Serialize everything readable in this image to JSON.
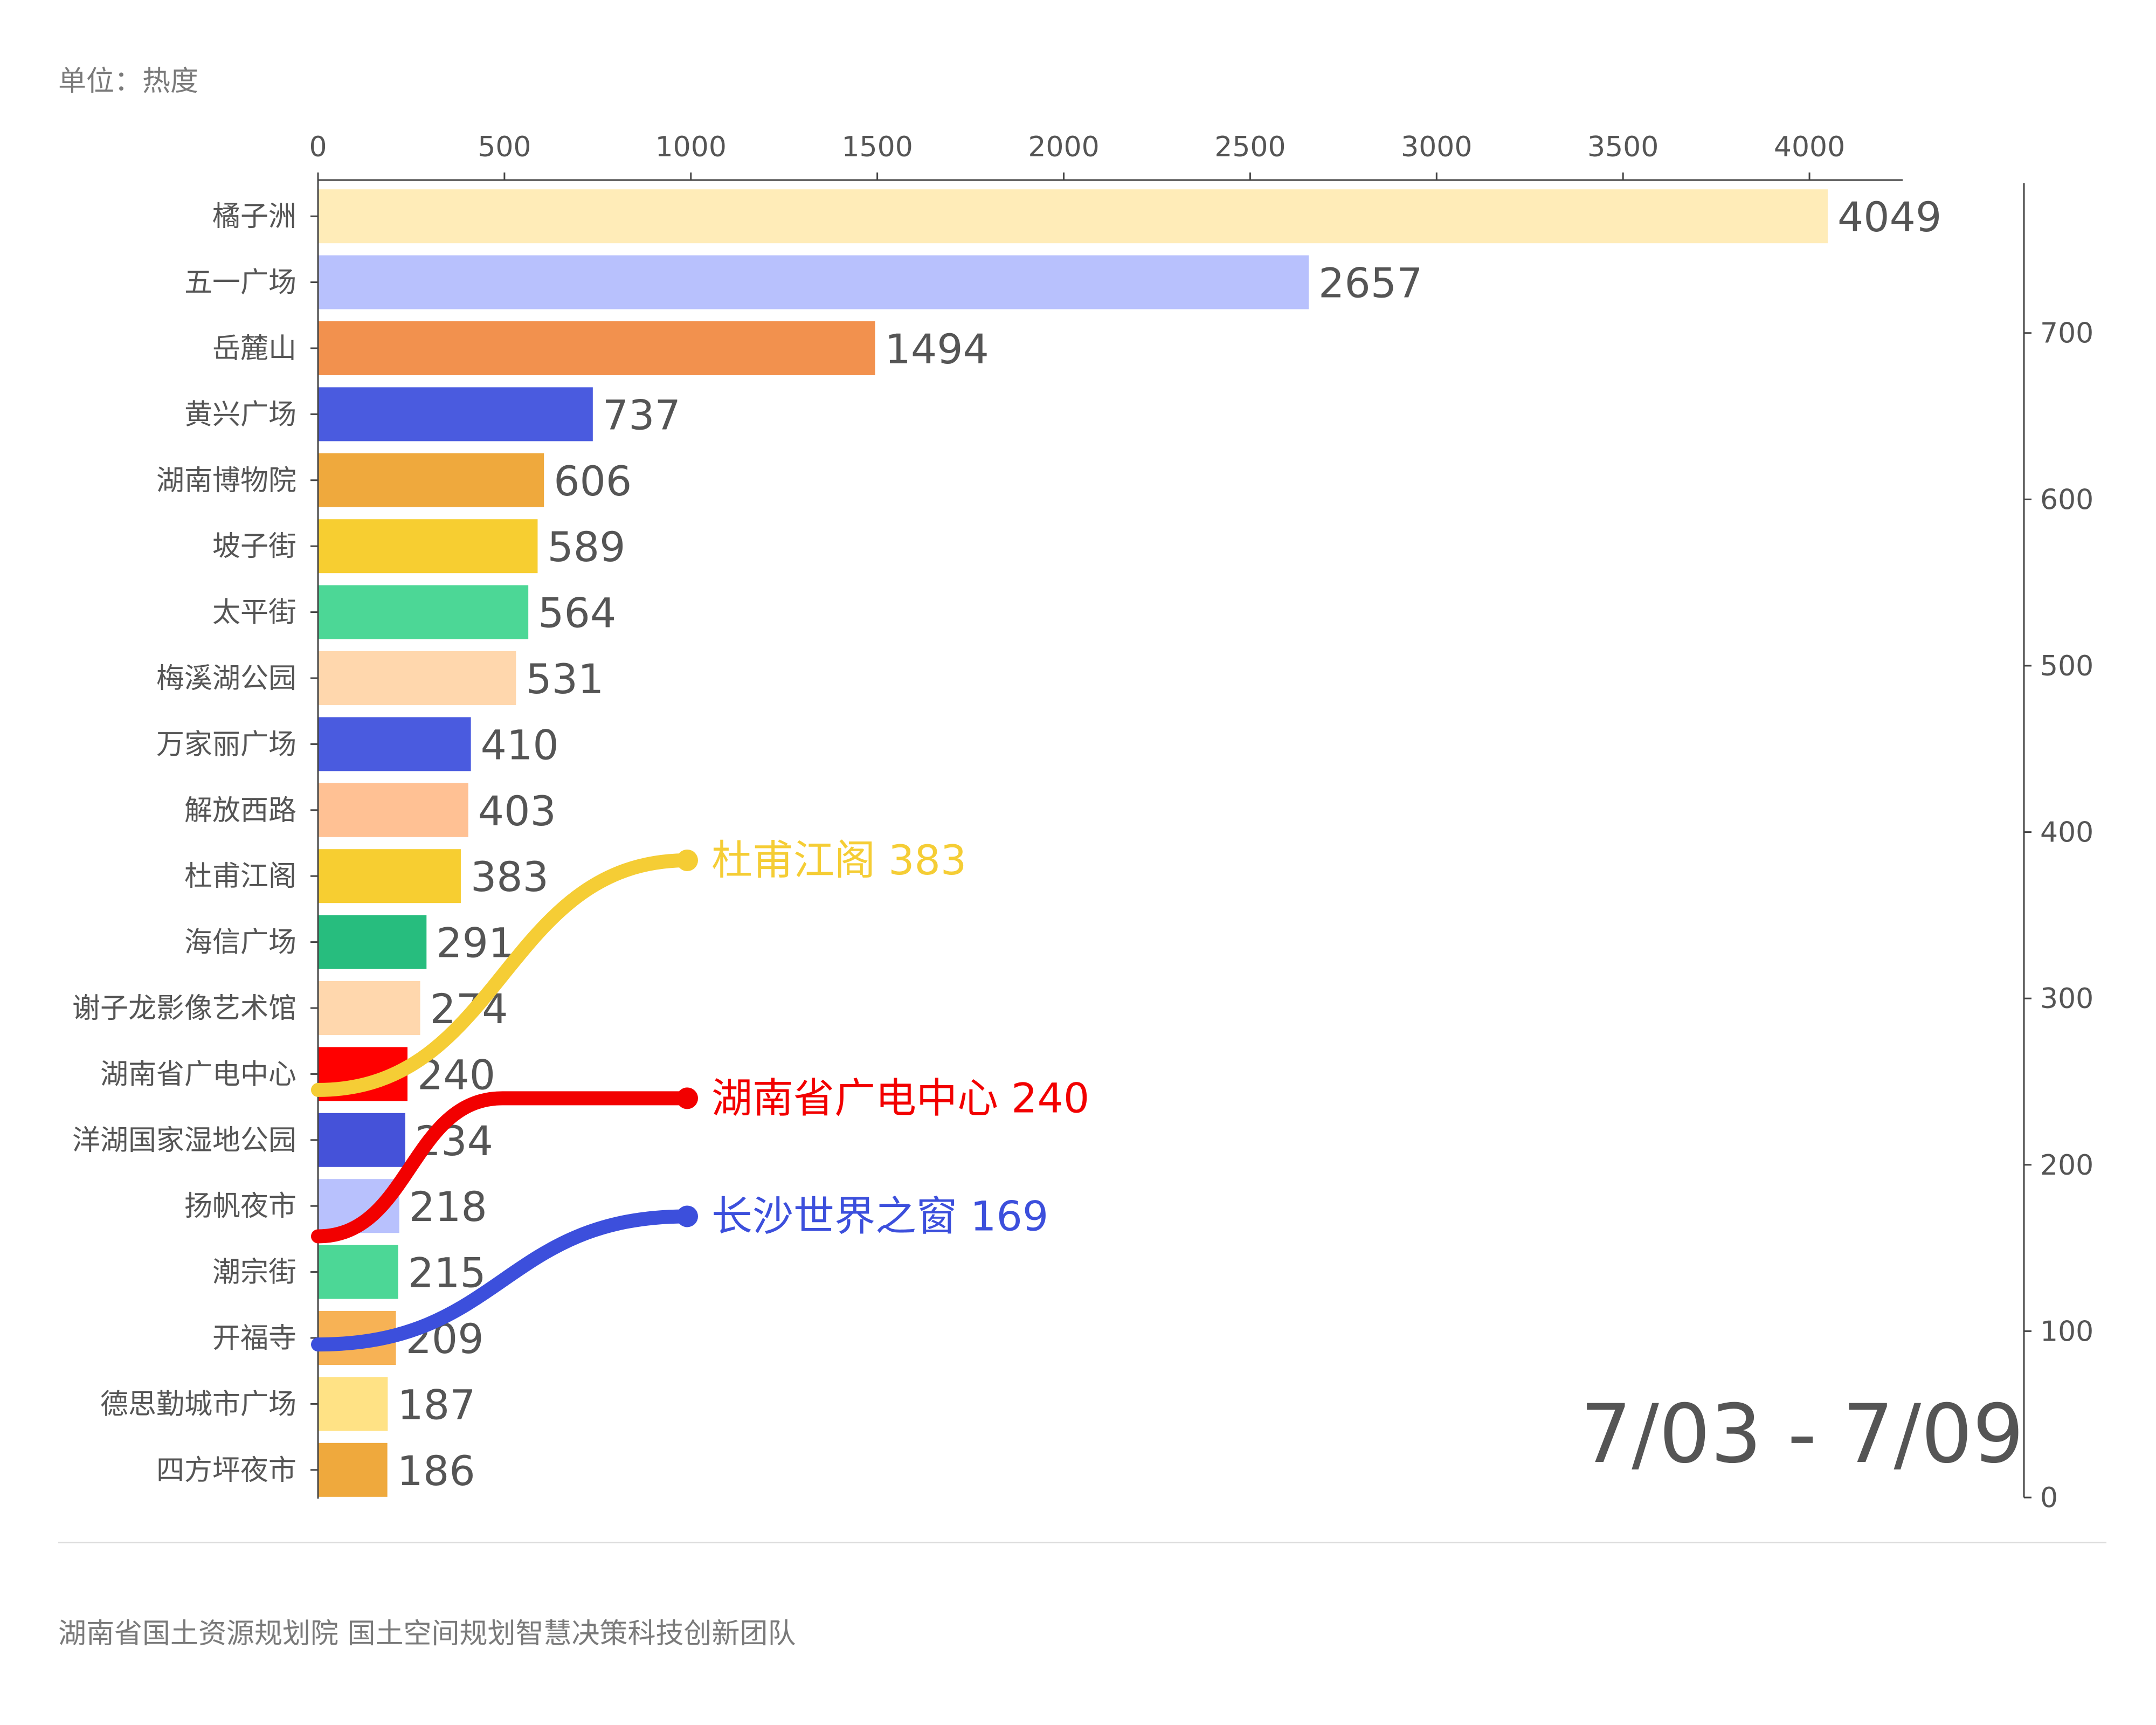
{
  "unit_label": "单位：热度",
  "footer_text": "湖南省国土资源规划院 国土空间规划智慧决策科技创新团队",
  "date_range": "7/03 - 7/09",
  "chart_data": [
    {
      "type": "bar",
      "orientation": "horizontal",
      "categories": [
        "橘子洲",
        "五一广场",
        "岳麓山",
        "黄兴广场",
        "湖南博物院",
        "坡子街",
        "太平街",
        "梅溪湖公园",
        "万家丽广场",
        "解放西路",
        "杜甫江阁",
        "海信广场",
        "谢子龙影像艺术馆",
        "湖南省广电中心",
        "洋湖国家湿地公园",
        "扬帆夜市",
        "潮宗街",
        "开福寺",
        "德思勤城市广场",
        "四方坪夜市"
      ],
      "values": [
        4049,
        2657,
        1494,
        737,
        606,
        589,
        564,
        531,
        410,
        403,
        383,
        291,
        274,
        240,
        234,
        218,
        215,
        209,
        187,
        186
      ],
      "colors": [
        "#ffecb8",
        "#b8c1fd",
        "#f2914e",
        "#4a5bdf",
        "#efa93d",
        "#f7ce31",
        "#4cd796",
        "#ffd7ad",
        "#4a5bdf",
        "#ffc194",
        "#f7ce31",
        "#27bd7e",
        "#ffd7ad",
        "#ff0000",
        "#4552d9",
        "#b8c1fd",
        "#4cd796",
        "#f7b255",
        "#ffe285",
        "#efa93d"
      ],
      "xlim": [
        0,
        4250
      ],
      "x_ticks": [
        0,
        500,
        1000,
        1500,
        2000,
        2500,
        3000,
        3500,
        4000
      ]
    },
    {
      "type": "line",
      "ylim": [
        0,
        790
      ],
      "y_ticks": [
        0,
        100,
        200,
        300,
        400,
        500,
        600,
        700
      ],
      "series": [
        {
          "name": "杜甫江阁",
          "value_label": "383",
          "color": "#f5cd35",
          "values": [
            245,
            383
          ]
        },
        {
          "name": "湖南省广电中心",
          "value_label": "240",
          "color": "#f20000",
          "values": [
            157,
            240,
            240
          ]
        },
        {
          "name": "长沙世界之窗",
          "value_label": "169",
          "color": "#3c4fdc",
          "values": [
            92,
            169
          ]
        }
      ]
    }
  ]
}
